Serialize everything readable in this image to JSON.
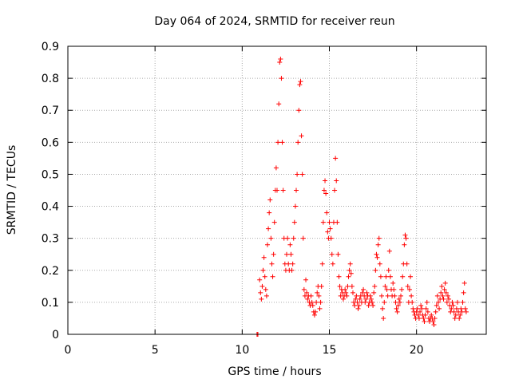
{
  "chart_data": {
    "type": "scatter",
    "title": "Day 064 of 2024, SRMTID for receiver reun",
    "xlabel": "GPS time / hours",
    "ylabel": "SRMTID / TECUs",
    "xlim": [
      0,
      24
    ],
    "ylim": [
      0,
      0.9
    ],
    "xticks": [
      0,
      5,
      10,
      15,
      20
    ],
    "yticks": [
      0,
      0.1,
      0.2,
      0.3,
      0.4,
      0.5,
      0.6,
      0.7,
      0.8,
      0.9
    ],
    "grid": true,
    "marker": "+",
    "color": "#ff0000",
    "series": [
      {
        "name": "SRMTID",
        "points": [
          [
            10.85,
            0.0
          ],
          [
            10.9,
            0.0
          ],
          [
            11.0,
            0.17
          ],
          [
            11.05,
            0.13
          ],
          [
            11.1,
            0.11
          ],
          [
            11.15,
            0.15
          ],
          [
            11.2,
            0.2
          ],
          [
            11.25,
            0.24
          ],
          [
            11.3,
            0.18
          ],
          [
            11.35,
            0.14
          ],
          [
            11.4,
            0.12
          ],
          [
            11.45,
            0.28
          ],
          [
            11.5,
            0.33
          ],
          [
            11.55,
            0.38
          ],
          [
            11.6,
            0.42
          ],
          [
            11.65,
            0.3
          ],
          [
            11.7,
            0.22
          ],
          [
            11.75,
            0.18
          ],
          [
            11.8,
            0.25
          ],
          [
            11.85,
            0.35
          ],
          [
            11.9,
            0.45
          ],
          [
            11.95,
            0.52
          ],
          [
            12.0,
            0.45
          ],
          [
            12.05,
            0.6
          ],
          [
            12.1,
            0.72
          ],
          [
            12.15,
            0.85
          ],
          [
            12.2,
            0.86
          ],
          [
            12.25,
            0.8
          ],
          [
            12.3,
            0.6
          ],
          [
            12.35,
            0.45
          ],
          [
            12.4,
            0.3
          ],
          [
            12.45,
            0.22
          ],
          [
            12.5,
            0.2
          ],
          [
            12.55,
            0.25
          ],
          [
            12.6,
            0.3
          ],
          [
            12.65,
            0.22
          ],
          [
            12.7,
            0.2
          ],
          [
            12.75,
            0.28
          ],
          [
            12.8,
            0.25
          ],
          [
            12.85,
            0.2
          ],
          [
            12.9,
            0.22
          ],
          [
            12.95,
            0.3
          ],
          [
            13.0,
            0.35
          ],
          [
            13.05,
            0.4
          ],
          [
            13.1,
            0.45
          ],
          [
            13.15,
            0.5
          ],
          [
            13.2,
            0.6
          ],
          [
            13.25,
            0.7
          ],
          [
            13.3,
            0.78
          ],
          [
            13.35,
            0.79
          ],
          [
            13.4,
            0.62
          ],
          [
            13.45,
            0.5
          ],
          [
            13.5,
            0.3
          ],
          [
            13.55,
            0.14
          ],
          [
            13.6,
            0.12
          ],
          [
            13.65,
            0.17
          ],
          [
            13.7,
            0.13
          ],
          [
            13.75,
            0.11
          ],
          [
            13.8,
            0.12
          ],
          [
            13.85,
            0.1
          ],
          [
            13.9,
            0.09
          ],
          [
            13.95,
            0.12
          ],
          [
            14.0,
            0.1
          ],
          [
            14.05,
            0.09
          ],
          [
            14.1,
            0.07
          ],
          [
            14.15,
            0.06
          ],
          [
            14.2,
            0.07
          ],
          [
            14.25,
            0.1
          ],
          [
            14.3,
            0.13
          ],
          [
            14.35,
            0.15
          ],
          [
            14.4,
            0.12
          ],
          [
            14.45,
            0.08
          ],
          [
            14.5,
            0.1
          ],
          [
            14.55,
            0.15
          ],
          [
            14.6,
            0.22
          ],
          [
            14.65,
            0.35
          ],
          [
            14.7,
            0.45
          ],
          [
            14.75,
            0.48
          ],
          [
            14.8,
            0.44
          ],
          [
            14.85,
            0.38
          ],
          [
            14.9,
            0.32
          ],
          [
            14.95,
            0.3
          ],
          [
            15.0,
            0.35
          ],
          [
            15.05,
            0.33
          ],
          [
            15.1,
            0.3
          ],
          [
            15.15,
            0.25
          ],
          [
            15.2,
            0.22
          ],
          [
            15.25,
            0.35
          ],
          [
            15.3,
            0.45
          ],
          [
            15.35,
            0.55
          ],
          [
            15.4,
            0.48
          ],
          [
            15.45,
            0.35
          ],
          [
            15.5,
            0.25
          ],
          [
            15.55,
            0.18
          ],
          [
            15.6,
            0.15
          ],
          [
            15.65,
            0.12
          ],
          [
            15.7,
            0.14
          ],
          [
            15.75,
            0.13
          ],
          [
            15.8,
            0.11
          ],
          [
            15.85,
            0.12
          ],
          [
            15.9,
            0.14
          ],
          [
            15.95,
            0.13
          ],
          [
            16.0,
            0.12
          ],
          [
            16.05,
            0.15
          ],
          [
            16.1,
            0.18
          ],
          [
            16.15,
            0.2
          ],
          [
            16.2,
            0.22
          ],
          [
            16.25,
            0.19
          ],
          [
            16.3,
            0.15
          ],
          [
            16.35,
            0.13
          ],
          [
            16.4,
            0.1
          ],
          [
            16.45,
            0.09
          ],
          [
            16.5,
            0.11
          ],
          [
            16.55,
            0.12
          ],
          [
            16.6,
            0.1
          ],
          [
            16.65,
            0.08
          ],
          [
            16.7,
            0.09
          ],
          [
            16.75,
            0.11
          ],
          [
            16.8,
            0.12
          ],
          [
            16.85,
            0.1
          ],
          [
            16.9,
            0.13
          ],
          [
            16.95,
            0.14
          ],
          [
            17.0,
            0.12
          ],
          [
            17.05,
            0.1
          ],
          [
            17.1,
            0.11
          ],
          [
            17.15,
            0.13
          ],
          [
            17.2,
            0.12
          ],
          [
            17.25,
            0.09
          ],
          [
            17.3,
            0.1
          ],
          [
            17.35,
            0.12
          ],
          [
            17.4,
            0.11
          ],
          [
            17.45,
            0.1
          ],
          [
            17.5,
            0.09
          ],
          [
            17.55,
            0.13
          ],
          [
            17.6,
            0.15
          ],
          [
            17.65,
            0.2
          ],
          [
            17.7,
            0.25
          ],
          [
            17.75,
            0.24
          ],
          [
            17.8,
            0.28
          ],
          [
            17.85,
            0.3
          ],
          [
            17.9,
            0.22
          ],
          [
            17.95,
            0.18
          ],
          [
            18.0,
            0.12
          ],
          [
            18.05,
            0.08
          ],
          [
            18.1,
            0.05
          ],
          [
            18.15,
            0.1
          ],
          [
            18.2,
            0.15
          ],
          [
            18.25,
            0.18
          ],
          [
            18.3,
            0.14
          ],
          [
            18.35,
            0.12
          ],
          [
            18.4,
            0.2
          ],
          [
            18.45,
            0.26
          ],
          [
            18.5,
            0.18
          ],
          [
            18.55,
            0.14
          ],
          [
            18.6,
            0.12
          ],
          [
            18.65,
            0.16
          ],
          [
            18.7,
            0.14
          ],
          [
            18.75,
            0.12
          ],
          [
            18.8,
            0.1
          ],
          [
            18.85,
            0.08
          ],
          [
            18.9,
            0.07
          ],
          [
            18.95,
            0.09
          ],
          [
            19.0,
            0.11
          ],
          [
            19.05,
            0.1
          ],
          [
            19.1,
            0.12
          ],
          [
            19.15,
            0.14
          ],
          [
            19.2,
            0.18
          ],
          [
            19.25,
            0.22
          ],
          [
            19.3,
            0.28
          ],
          [
            19.35,
            0.31
          ],
          [
            19.4,
            0.3
          ],
          [
            19.45,
            0.22
          ],
          [
            19.5,
            0.15
          ],
          [
            19.55,
            0.1
          ],
          [
            19.6,
            0.14
          ],
          [
            19.65,
            0.18
          ],
          [
            19.7,
            0.12
          ],
          [
            19.75,
            0.1
          ],
          [
            19.8,
            0.08
          ],
          [
            19.85,
            0.07
          ],
          [
            19.9,
            0.06
          ],
          [
            19.95,
            0.05
          ],
          [
            20.0,
            0.07
          ],
          [
            20.05,
            0.08
          ],
          [
            20.1,
            0.06
          ],
          [
            20.15,
            0.05
          ],
          [
            20.2,
            0.07
          ],
          [
            20.25,
            0.09
          ],
          [
            20.3,
            0.08
          ],
          [
            20.35,
            0.06
          ],
          [
            20.4,
            0.05
          ],
          [
            20.45,
            0.04
          ],
          [
            20.5,
            0.06
          ],
          [
            20.55,
            0.08
          ],
          [
            20.6,
            0.1
          ],
          [
            20.65,
            0.07
          ],
          [
            20.7,
            0.05
          ],
          [
            20.75,
            0.04
          ],
          [
            20.8,
            0.05
          ],
          [
            20.85,
            0.06
          ],
          [
            20.9,
            0.05
          ],
          [
            20.95,
            0.04
          ],
          [
            21.0,
            0.03
          ],
          [
            21.05,
            0.05
          ],
          [
            21.1,
            0.07
          ],
          [
            21.15,
            0.09
          ],
          [
            21.2,
            0.12
          ],
          [
            21.25,
            0.1
          ],
          [
            21.3,
            0.08
          ],
          [
            21.35,
            0.11
          ],
          [
            21.4,
            0.13
          ],
          [
            21.45,
            0.15
          ],
          [
            21.5,
            0.12
          ],
          [
            21.55,
            0.11
          ],
          [
            21.6,
            0.14
          ],
          [
            21.65,
            0.16
          ],
          [
            21.7,
            0.13
          ],
          [
            21.75,
            0.1
          ],
          [
            21.8,
            0.12
          ],
          [
            21.85,
            0.11
          ],
          [
            21.9,
            0.09
          ],
          [
            21.95,
            0.07
          ],
          [
            22.0,
            0.08
          ],
          [
            22.05,
            0.1
          ],
          [
            22.1,
            0.09
          ],
          [
            22.15,
            0.07
          ],
          [
            22.2,
            0.05
          ],
          [
            22.25,
            0.06
          ],
          [
            22.3,
            0.08
          ],
          [
            22.35,
            0.1
          ],
          [
            22.4,
            0.07
          ],
          [
            22.45,
            0.05
          ],
          [
            22.5,
            0.06
          ],
          [
            22.55,
            0.08
          ],
          [
            22.6,
            0.07
          ],
          [
            22.65,
            0.1
          ],
          [
            22.7,
            0.13
          ],
          [
            22.75,
            0.16
          ],
          [
            22.8,
            0.08
          ],
          [
            22.85,
            0.07
          ]
        ]
      }
    ]
  }
}
